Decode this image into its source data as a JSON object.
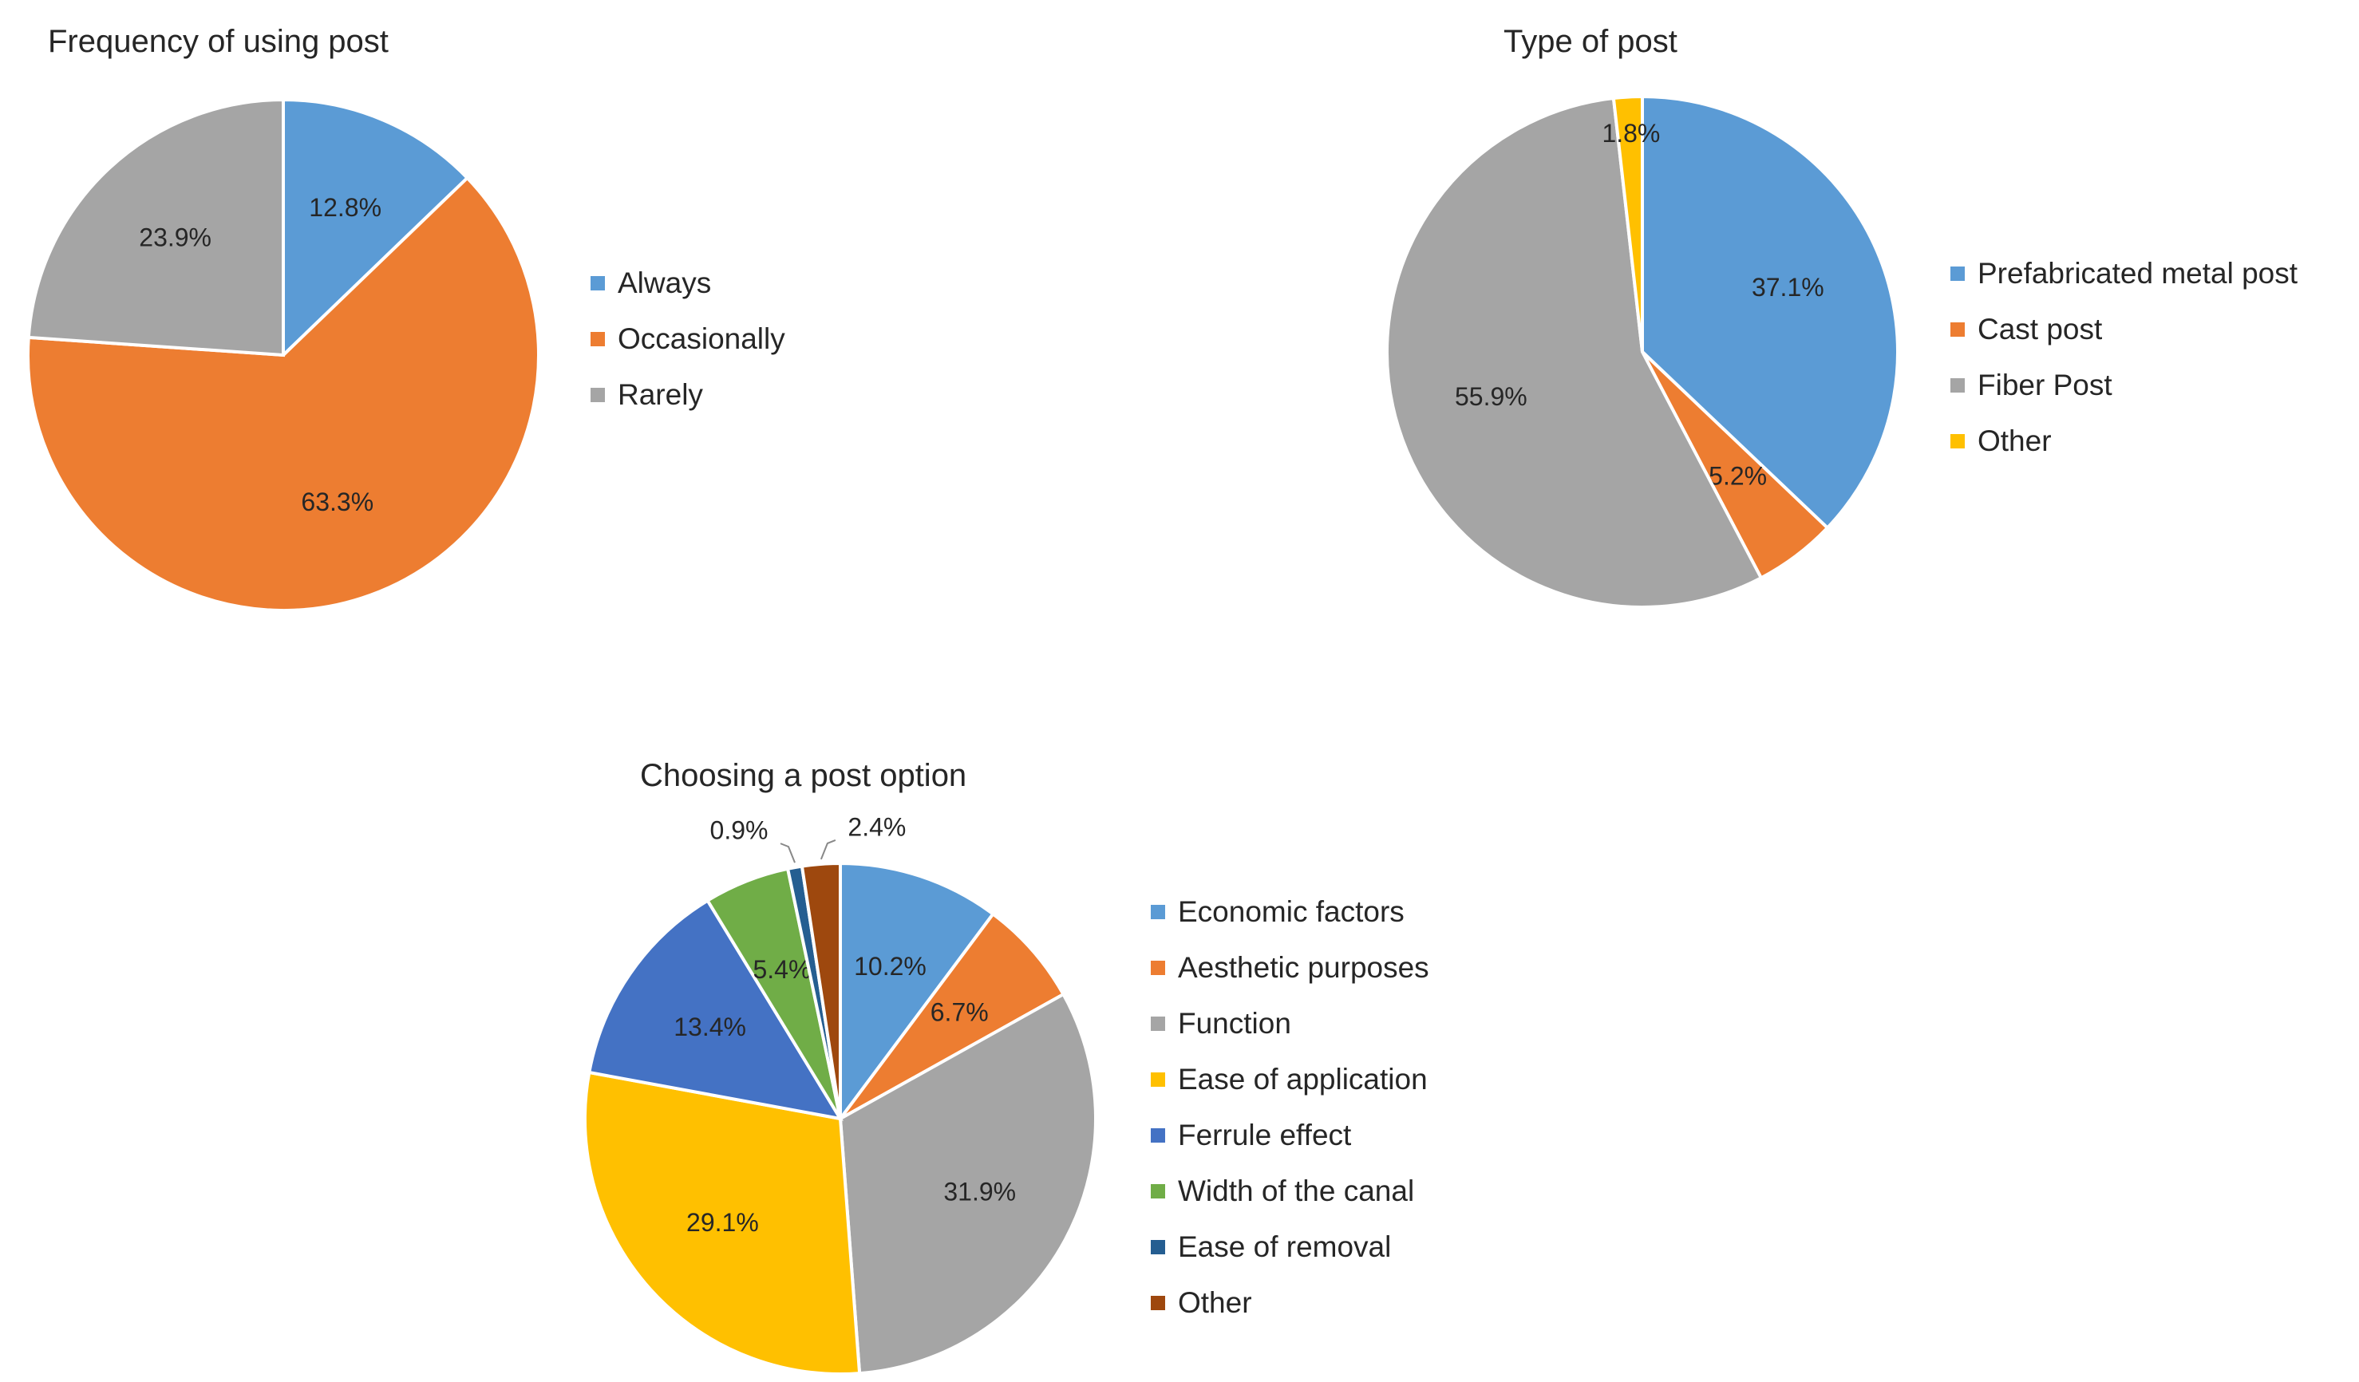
{
  "chart_data": [
    {
      "type": "pie",
      "title": "Frequency of using post",
      "categories": [
        "Always",
        "Occasionally",
        "Rarely"
      ],
      "values": [
        12.8,
        63.3,
        23.9
      ],
      "labels": [
        "12.8%",
        "63.3%",
        "23.9%"
      ],
      "colors": [
        "#5b9bd5",
        "#ed7d31",
        "#a5a5a5"
      ],
      "legend_position": "right"
    },
    {
      "type": "pie",
      "title": "Type of post",
      "categories": [
        "Prefabricated metal post",
        "Cast post",
        "Fiber Post",
        "Other"
      ],
      "values": [
        37.1,
        5.2,
        55.9,
        1.8
      ],
      "labels": [
        "37.1%",
        "5.2%",
        "55.9%",
        "1.8%"
      ],
      "colors": [
        "#5b9bd5",
        "#ed7d31",
        "#a5a5a5",
        "#ffc000"
      ],
      "legend_position": "right"
    },
    {
      "type": "pie",
      "title": "Choosing a post option",
      "categories": [
        "Economic factors",
        "Aesthetic purposes",
        "Function",
        "Ease of application",
        "Ferrule effect",
        "Width of the canal",
        "Ease of removal",
        "Other"
      ],
      "values": [
        10.2,
        6.7,
        31.9,
        29.1,
        13.4,
        5.4,
        0.9,
        2.4
      ],
      "labels": [
        "10.2%",
        "6.7%",
        "31.9%",
        "29.1%",
        "13.4%",
        "5.4%",
        "0.9%",
        "2.4%"
      ],
      "colors": [
        "#5b9bd5",
        "#ed7d31",
        "#a5a5a5",
        "#ffc000",
        "#4472c4",
        "#70ad47",
        "#255e91",
        "#9e480e"
      ],
      "legend_position": "right"
    }
  ]
}
